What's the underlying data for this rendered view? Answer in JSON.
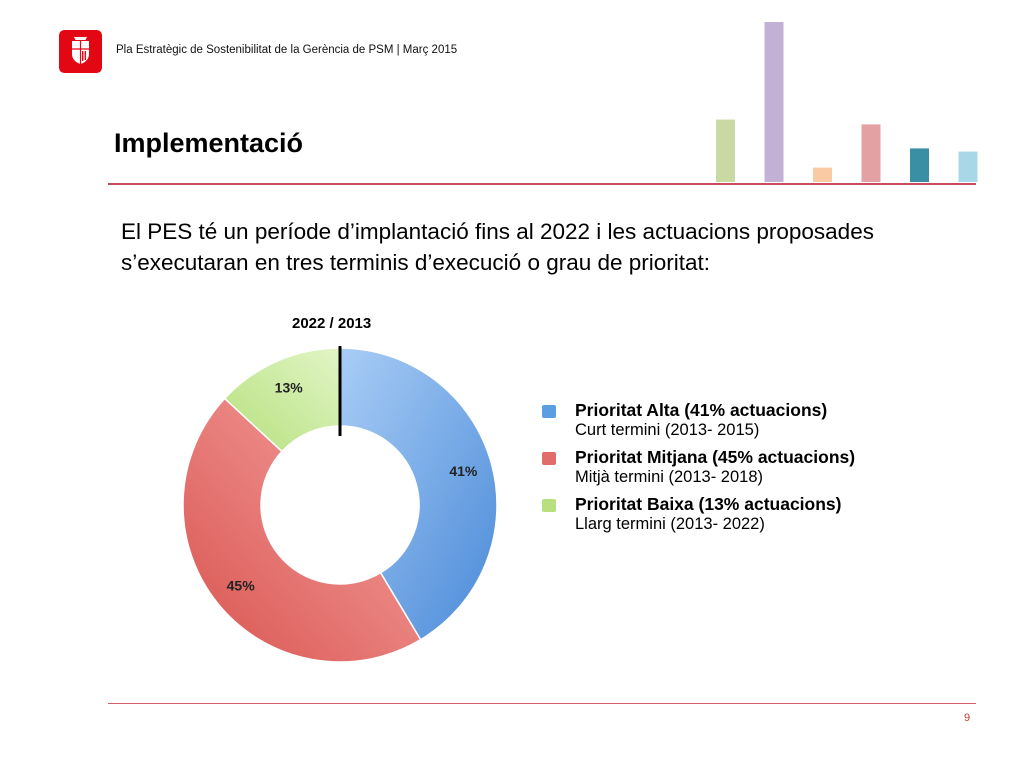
{
  "header": {
    "text": "Pla Estratègic de Sostenibilitat de la Gerència de PSM | Març 2015"
  },
  "title": "Implementació",
  "intro": "El PES té un període d’implantació fins al 2022 i les actuacions proposades s’executaran en tres terminis d’execució o grau de prioritat:",
  "decorative_bars": {
    "colors": [
      "#c9d9a4",
      "#c2b1d4",
      "#f9caa3",
      "#e4a1a3",
      "#3a8fa5",
      "#a8d8e8"
    ],
    "relative_heights": [
      0.39,
      1.0,
      0.09,
      0.36,
      0.21,
      0.19
    ]
  },
  "chart_data": {
    "type": "pie",
    "title": "2022 / 2013",
    "categories": [
      "Prioritat Alta (41% actuacions)",
      "Prioritat Mitjana (45% actuacions)",
      "Prioritat Baixa (13% actuacions)"
    ],
    "values": [
      41,
      45,
      13
    ],
    "data_labels": [
      "41%",
      "45%",
      "13%"
    ],
    "colors": [
      "#6aa3e6",
      "#e8736f",
      "#c6e89a"
    ],
    "legend_position": "right",
    "legend": [
      {
        "label": "Prioritat Alta (41% actuacions)",
        "sublabel": "Curt termini (2013- 2015)",
        "color": "#5b9ee1"
      },
      {
        "label": "Prioritat Mitjana (45% actuacions)",
        "sublabel": "Mitjà termini (2013- 2018)",
        "color": "#e16d6a"
      },
      {
        "label": "Prioritat Baixa (13% actuacions)",
        "sublabel": "Llarg termini (2013- 2022)",
        "color": "#b9e07f"
      }
    ]
  },
  "page_number": "9"
}
